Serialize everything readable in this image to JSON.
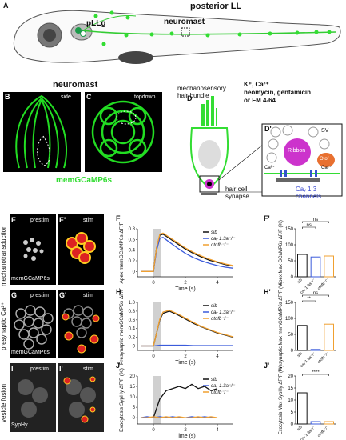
{
  "panel_labels": {
    "A": "A",
    "B": "B",
    "C": "C",
    "D": "D",
    "Dp": "D'",
    "E": "E",
    "Ep": "E'",
    "F": "F",
    "Fp": "F'",
    "G": "G",
    "Gp": "G'",
    "H": "H",
    "Hp": "H'",
    "I": "I",
    "Ip": "I'",
    "J": "J",
    "Jp": "J'"
  },
  "panelA": {
    "title": "posterior LL",
    "pllg": "pLLg",
    "neuromast": "neuromast"
  },
  "panelBC": {
    "title": "neuromast",
    "side": "side",
    "topdown": "topdown",
    "caption": "memGCaMP6s"
  },
  "panelD": {
    "hair_bundle": "mechanosensory hair bundle",
    "ions_line1": "K⁺, Ca²⁺",
    "ions_line2": "neomycin, gentamicin",
    "ions_line3": "or FM 4-64",
    "synapse_line1": "hair cell",
    "synapse_line2": "synapse",
    "sv": "SV",
    "ribbon": "Ribbon",
    "otof": "Otof",
    "ca_left": "Ca²⁺",
    "ca_right": "Ca²⁺",
    "channels_line1": "Caᵥ 1.3",
    "channels_line2": "channels"
  },
  "rows": [
    {
      "side_label": "mechanotransduction",
      "marker": "memGCaMP6s",
      "prestim": "prestim",
      "stim": "stim"
    },
    {
      "side_label": "presynaptic Ca²⁺",
      "marker": "memGCaMP6s",
      "prestim": "prestim",
      "stim": "stim"
    },
    {
      "side_label": "vesicle fusion",
      "marker": "SypHy",
      "prestim": "prestim",
      "stim": "stim"
    }
  ],
  "legend": {
    "sib": "sib",
    "cav": "caᵥ 1.3a⁻/⁻",
    "otof": "otofb⁻/⁻"
  },
  "colors": {
    "sib": "#111111",
    "cav": "#3b5bdb",
    "otof": "#f0a030",
    "green": "#33dd33",
    "stim_bar": "#d0d0d0"
  },
  "chart_data": [
    {
      "type": "line",
      "panel": "F",
      "ylabel": "Apex memGCaMP6s ΔF/F",
      "xlabel": "Time (s)",
      "ylim": [
        -0.1,
        0.8
      ],
      "yticks": [
        "0",
        "0.2",
        "0.4",
        "0.6",
        "0.8"
      ],
      "xticks": [
        "0",
        "2",
        "4"
      ],
      "xlim": [
        -1,
        5
      ],
      "stim": [
        0,
        0.5
      ],
      "x": [
        -0.8,
        -0.4,
        0,
        0.2,
        0.4,
        0.6,
        1,
        1.5,
        2,
        2.5,
        3,
        3.5,
        4,
        4.5,
        5
      ],
      "series": [
        {
          "name": "sib",
          "values": [
            0,
            0,
            0,
            0.45,
            0.68,
            0.7,
            0.62,
            0.52,
            0.42,
            0.34,
            0.27,
            0.21,
            0.17,
            0.13,
            0.1
          ]
        },
        {
          "name": "caᵥ 1.3a⁻/⁻",
          "values": [
            0,
            0,
            0,
            0.4,
            0.62,
            0.64,
            0.55,
            0.44,
            0.34,
            0.26,
            0.2,
            0.15,
            0.11,
            0.08,
            0.06
          ]
        },
        {
          "name": "otofb⁻/⁻",
          "values": [
            0,
            0,
            0,
            0.45,
            0.7,
            0.72,
            0.64,
            0.54,
            0.44,
            0.36,
            0.29,
            0.23,
            0.18,
            0.14,
            0.11
          ]
        }
      ]
    },
    {
      "type": "bar",
      "panel": "F'",
      "ylabel": "Apex Max GCaMP6s ΔF/F (%)",
      "ylim": [
        0,
        150
      ],
      "yticks": [
        "0",
        "50",
        "100",
        "150"
      ],
      "categories": [
        "sib",
        "caᵥ 1.3a⁻/⁻",
        "otofb⁻/⁻"
      ],
      "values": [
        70,
        62,
        65
      ],
      "significance": [
        {
          "pair": [
            0,
            1
          ],
          "label": "ns"
        },
        {
          "pair": [
            0,
            2
          ],
          "label": "ns"
        }
      ]
    },
    {
      "type": "line",
      "panel": "H",
      "ylabel": "Presynaptic memGCaMP6s ΔF/F",
      "xlabel": "Time (s)",
      "ylim": [
        -0.1,
        1.0
      ],
      "yticks": [
        "0",
        "0.2",
        "0.4",
        "0.6",
        "0.8",
        "1.0"
      ],
      "xticks": [
        "0",
        "2",
        "4"
      ],
      "xlim": [
        -1,
        5
      ],
      "stim": [
        0,
        0.5
      ],
      "x": [
        -0.8,
        -0.4,
        0,
        0.2,
        0.4,
        0.6,
        1,
        1.5,
        2,
        2.5,
        3,
        3.5,
        4,
        4.5,
        5
      ],
      "series": [
        {
          "name": "sib",
          "values": [
            0,
            0,
            0,
            0.3,
            0.6,
            0.75,
            0.8,
            0.72,
            0.62,
            0.52,
            0.44,
            0.37,
            0.3,
            0.25,
            0.2
          ]
        },
        {
          "name": "caᵥ 1.3a⁻/⁻",
          "values": [
            0,
            0,
            0,
            0.01,
            0.02,
            0.02,
            0.02,
            0.02,
            0.02,
            0.01,
            0.01,
            0.01,
            0.01,
            0.01,
            0.01
          ]
        },
        {
          "name": "otofb⁻/⁻",
          "values": [
            0,
            0,
            0,
            0.3,
            0.62,
            0.78,
            0.82,
            0.74,
            0.64,
            0.54,
            0.45,
            0.38,
            0.31,
            0.26,
            0.21
          ]
        }
      ]
    },
    {
      "type": "bar",
      "panel": "H'",
      "ylabel": "Presynaptic Max memGCaMP6s ΔF/F (%)",
      "ylim": [
        0,
        150
      ],
      "yticks": [
        "0",
        "50",
        "100",
        "150"
      ],
      "categories": [
        "sib",
        "caᵥ 1.3a⁻/⁻",
        "otofb⁻/⁻"
      ],
      "values": [
        78,
        3,
        82
      ],
      "significance": [
        {
          "pair": [
            0,
            1
          ],
          "label": "**"
        },
        {
          "pair": [
            0,
            2
          ],
          "label": "ns"
        }
      ]
    },
    {
      "type": "line",
      "panel": "J",
      "ylabel": "Exocytosis SypHy ΔF/F (%)",
      "xlabel": "Time (s)",
      "ylim": [
        -3,
        20
      ],
      "yticks": [
        "0",
        "5",
        "10",
        "15",
        "20"
      ],
      "xticks": [
        "0",
        "2",
        "4"
      ],
      "xlim": [
        -1,
        5
      ],
      "stim": [
        0,
        0.5
      ],
      "x": [
        -0.8,
        -0.4,
        0,
        0.4,
        0.8,
        1.2,
        1.6,
        2,
        2.4,
        2.8,
        3.2,
        3.6,
        4
      ],
      "series": [
        {
          "name": "sib",
          "values": [
            0,
            0,
            0,
            9,
            13,
            14,
            15,
            14,
            16,
            14,
            15,
            13,
            14
          ]
        },
        {
          "name": "caᵥ 1.3a⁻/⁻",
          "values": [
            0,
            0.5,
            0,
            0.5,
            0,
            0.5,
            0,
            0,
            0.5,
            0,
            0.5,
            0,
            0
          ]
        },
        {
          "name": "otofb⁻/⁻",
          "values": [
            0,
            0,
            0.5,
            0,
            0.5,
            0,
            0.5,
            0,
            0,
            0.5,
            0,
            0.5,
            0
          ]
        }
      ]
    },
    {
      "type": "bar",
      "panel": "J'",
      "ylabel": "Exocytosis Max SypHy ΔF/F (%)",
      "ylim": [
        0,
        20
      ],
      "yticks": [
        "0",
        "5",
        "10",
        "15",
        "20"
      ],
      "categories": [
        "sib",
        "caᵥ 1.3a⁻/⁻",
        "otofb⁻/⁻"
      ],
      "values": [
        13,
        1,
        1
      ],
      "significance": [
        {
          "pair": [
            0,
            2
          ],
          "label": "****"
        }
      ]
    }
  ]
}
